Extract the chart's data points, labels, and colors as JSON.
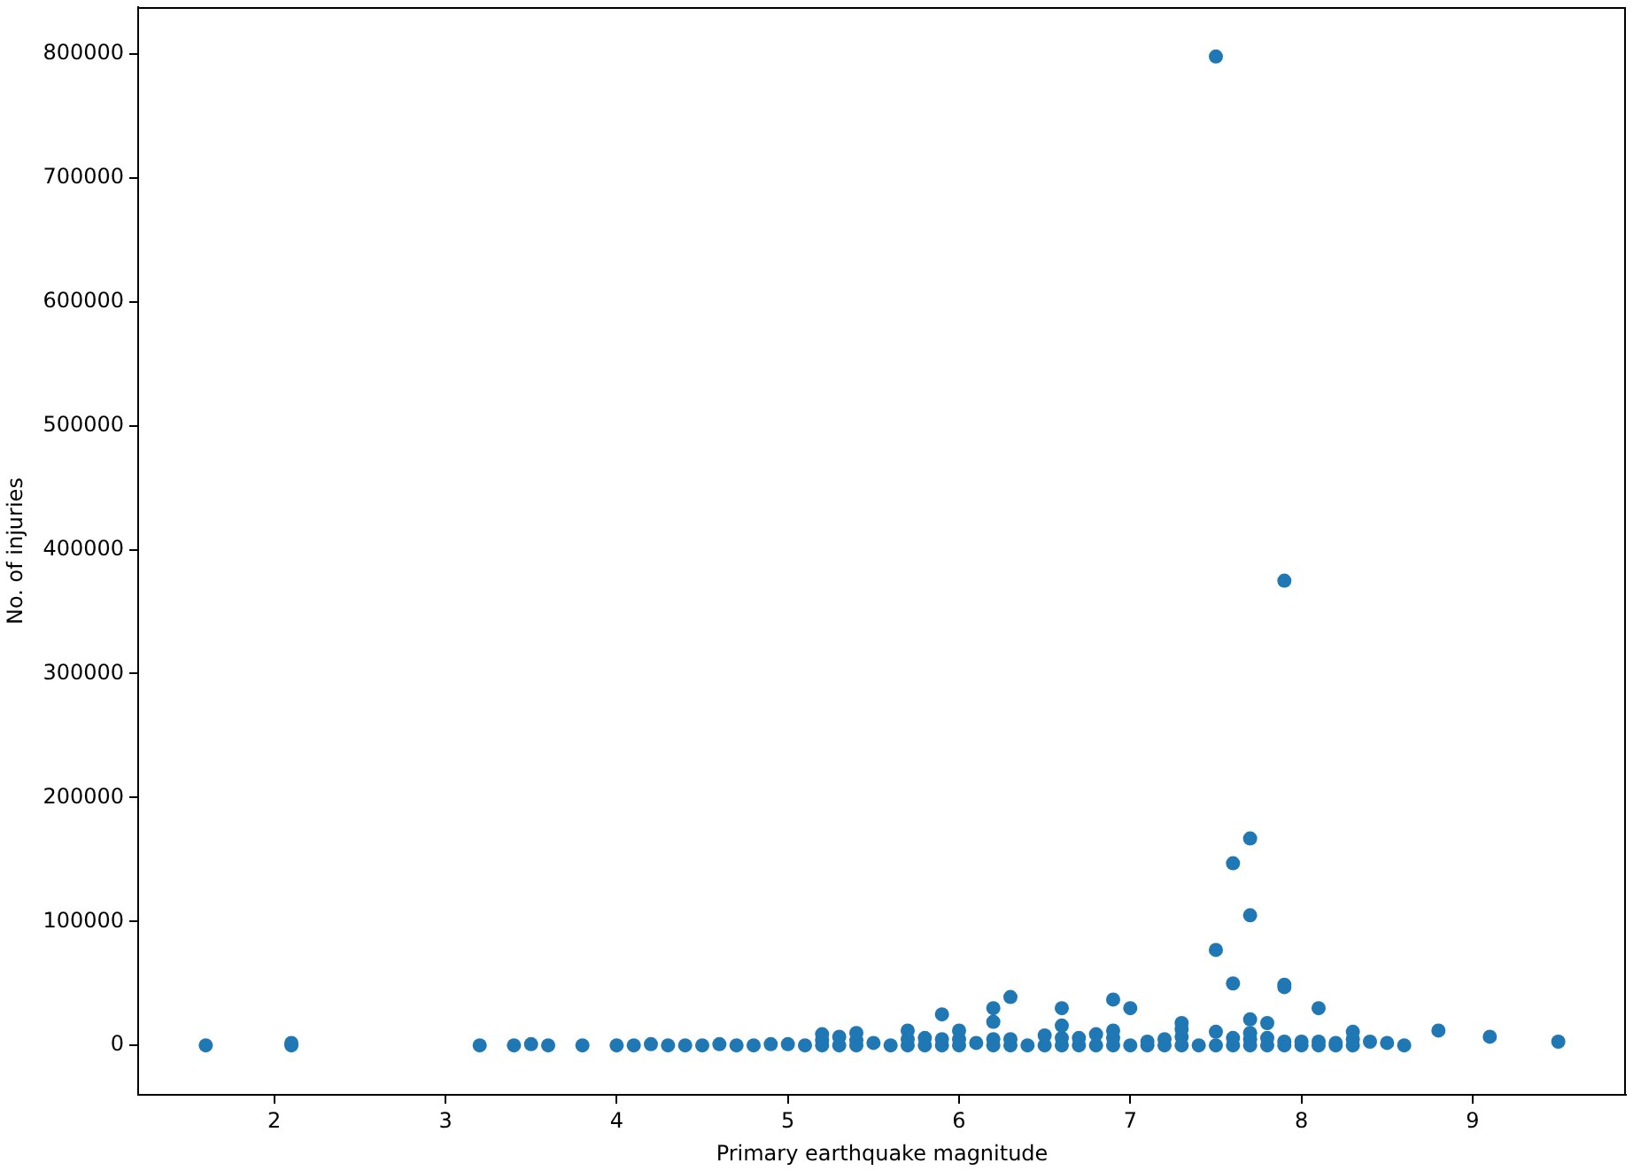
{
  "chart_data": {
    "type": "scatter",
    "xlabel": "Primary earthquake magnitude",
    "ylabel": "No. of injuries",
    "x": [
      1.6,
      2.1,
      2.1,
      3.2,
      3.4,
      3.5,
      3.6,
      3.8,
      4.0,
      4.1,
      4.2,
      4.3,
      4.4,
      4.5,
      4.6,
      4.7,
      4.8,
      4.9,
      5.0,
      5.1,
      5.2,
      5.2,
      5.2,
      5.3,
      5.3,
      5.4,
      5.4,
      5.4,
      5.5,
      5.6,
      5.7,
      5.7,
      5.7,
      5.8,
      5.8,
      5.9,
      5.9,
      5.9,
      6.0,
      6.0,
      6.0,
      6.1,
      6.2,
      6.2,
      6.2,
      6.2,
      6.3,
      6.3,
      6.3,
      6.4,
      6.5,
      6.5,
      6.6,
      6.6,
      6.6,
      6.6,
      6.7,
      6.7,
      6.8,
      6.8,
      6.9,
      6.9,
      6.9,
      6.9,
      7.0,
      7.0,
      7.1,
      7.1,
      7.2,
      7.2,
      7.3,
      7.3,
      7.3,
      7.3,
      7.4,
      7.5,
      7.5,
      7.5,
      7.5,
      7.6,
      7.6,
      7.6,
      7.6,
      7.7,
      7.7,
      7.7,
      7.7,
      7.7,
      7.7,
      7.8,
      7.8,
      7.8,
      7.9,
      7.9,
      7.9,
      7.9,
      7.9,
      8.0,
      8.0,
      8.1,
      8.1,
      8.1,
      8.2,
      8.2,
      8.3,
      8.3,
      8.3,
      8.4,
      8.5,
      8.6,
      8.8,
      9.1,
      9.5
    ],
    "values": [
      0,
      0,
      2000,
      0,
      0,
      1000,
      0,
      0,
      0,
      0,
      1000,
      0,
      0,
      0,
      1000,
      0,
      0,
      1000,
      1000,
      0,
      0,
      4000,
      9000,
      0,
      7000,
      0,
      4000,
      10000,
      2000,
      0,
      0,
      5000,
      12000,
      0,
      6000,
      0,
      5000,
      25000,
      0,
      5000,
      12000,
      2000,
      0,
      5000,
      19000,
      30000,
      0,
      5000,
      39000,
      0,
      0,
      8000,
      0,
      6000,
      16000,
      30000,
      0,
      6000,
      0,
      9000,
      0,
      6000,
      12000,
      37000,
      0,
      30000,
      0,
      3000,
      0,
      5000,
      0,
      7000,
      13000,
      18000,
      0,
      0,
      11000,
      77000,
      798000,
      0,
      6000,
      50000,
      147000,
      0,
      5000,
      10000,
      21000,
      105000,
      167000,
      0,
      6000,
      18000,
      0,
      3000,
      47000,
      49000,
      375000,
      0,
      3000,
      0,
      3000,
      30000,
      0,
      2000,
      0,
      5000,
      11000,
      3000,
      2000,
      0,
      12000,
      7000,
      3000
    ],
    "color": "#1f77b4",
    "marker": "circle",
    "grid": false,
    "xlim": [
      1.205,
      9.895
    ],
    "xticks": [
      2,
      3,
      4,
      5,
      6,
      7,
      8,
      9
    ],
    "ylim": [
      -39900,
      837900
    ],
    "yticks": [
      0,
      100000,
      200000,
      300000,
      400000,
      500000,
      600000,
      700000,
      800000
    ]
  }
}
